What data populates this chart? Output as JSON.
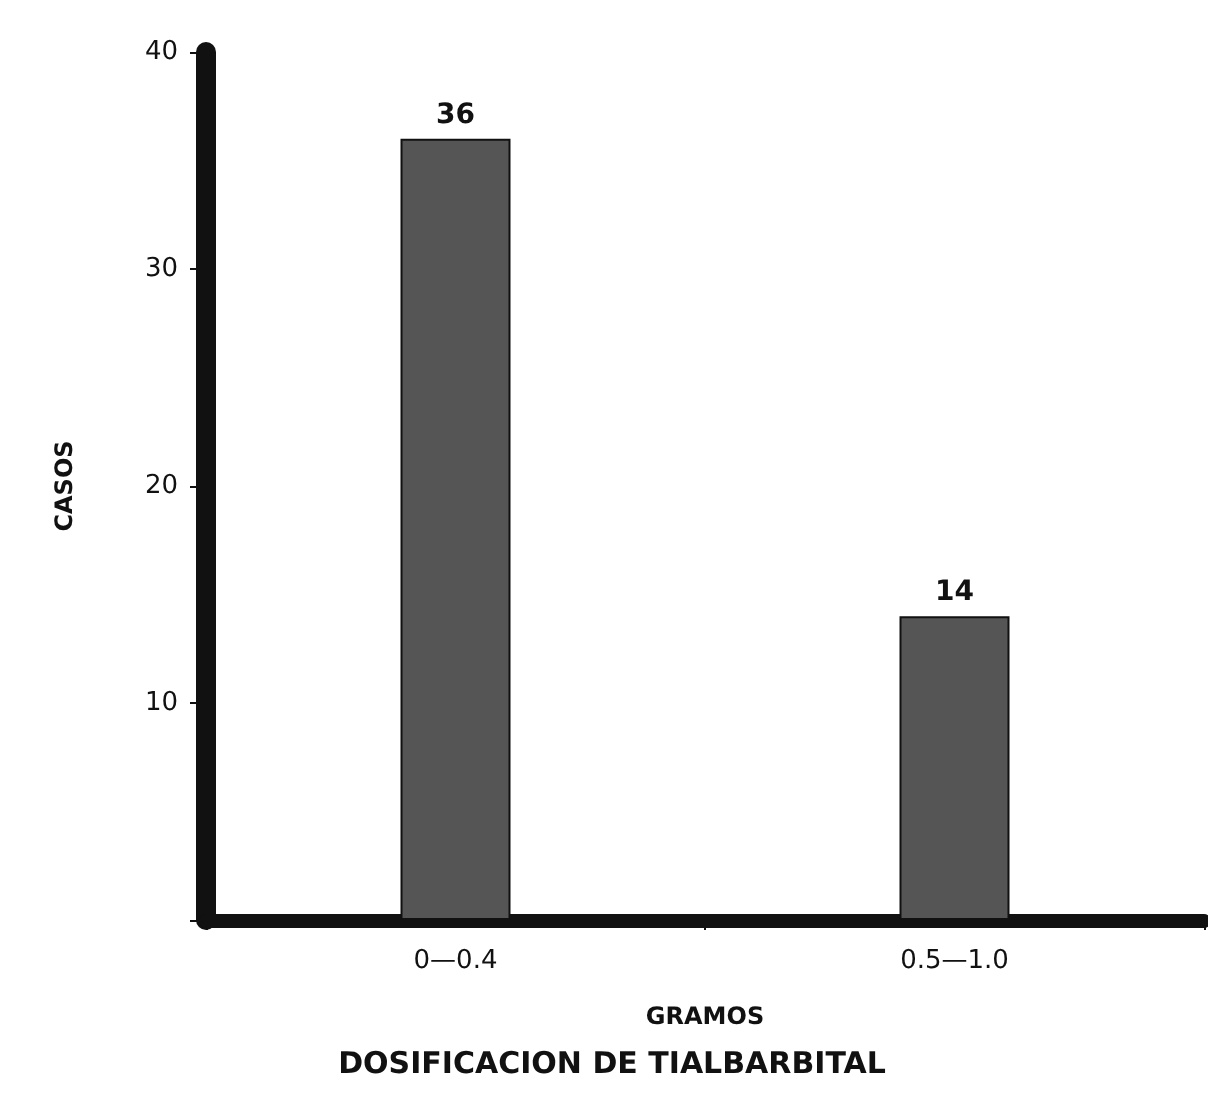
{
  "chart_data": {
    "type": "bar",
    "title": "DOSIFICACION DE TIALBARBITAL",
    "xlabel": "GRAMOS",
    "ylabel": "CASOS",
    "categories": [
      "0—0.4",
      "0.5—1.0"
    ],
    "values": [
      36,
      14
    ],
    "color": "#555555",
    "ylim": [
      0,
      40
    ],
    "yticks": [
      {
        "value": 0,
        "label": null
      },
      10,
      20,
      30,
      40
    ],
    "data_labels": true
  }
}
